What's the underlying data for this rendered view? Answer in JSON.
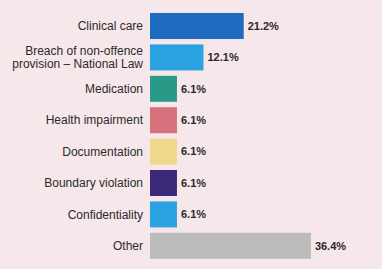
{
  "chart_data": {
    "type": "bar",
    "orientation": "horizontal",
    "categories": [
      "Clinical care",
      "Breach of non-offence provision – National Law",
      "Medication",
      "Health impairment",
      "Documentation",
      "Boundary violation",
      "Confidentiality",
      "Other"
    ],
    "values": [
      21.2,
      12.1,
      6.1,
      6.1,
      6.1,
      6.1,
      6.1,
      36.4
    ],
    "value_labels": [
      "21.2%",
      "12.1%",
      "6.1%",
      "6.1%",
      "6.1%",
      "6.1%",
      "6.1%",
      "36.4%"
    ],
    "colors": [
      "#1d6cc2",
      "#2ba3e3",
      "#2a9a88",
      "#d7727c",
      "#efd98c",
      "#3b2878",
      "#2ba3e3",
      "#bcbcbc"
    ],
    "xlim": [
      0,
      40
    ],
    "tick_labels": false,
    "data_labels": true,
    "grid": false
  }
}
